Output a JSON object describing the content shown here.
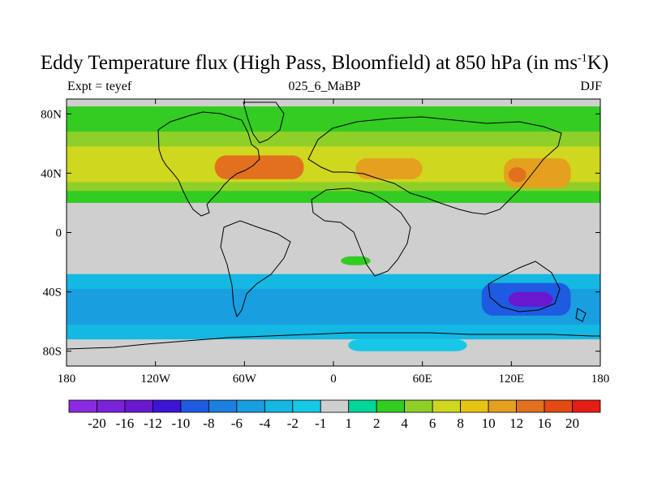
{
  "title": {
    "main": "Eddy Temperature flux (High Pass, Bloomfield) at 850 hPa (in ms",
    "exponent": "-1",
    "suffix": "K)"
  },
  "subtitle": {
    "left": "Expt = teyef",
    "center": "025_6_MaBP",
    "right": "DJF"
  },
  "chart_data": {
    "type": "heatmap",
    "title": "Eddy Temperature flux (High Pass, Bloomfield) at 850 hPa (in ms-1K)",
    "projection": "cylindrical equidistant",
    "xlim": [
      -180,
      180
    ],
    "ylim": [
      -90,
      90
    ],
    "x_ticks": [
      -180,
      -120,
      -60,
      0,
      60,
      120,
      180
    ],
    "x_tick_labels": [
      "180",
      "120W",
      "60W",
      "0",
      "60E",
      "120E",
      "180"
    ],
    "y_ticks": [
      80,
      40,
      0,
      -40,
      -80
    ],
    "y_tick_labels": [
      "80N",
      "40N",
      "0",
      "40S",
      "80S"
    ],
    "colorbar": {
      "colors": [
        "#8a2be2",
        "#7a22d8",
        "#6a18d0",
        "#3c14d6",
        "#1e5be0",
        "#1c7fe0",
        "#199ee0",
        "#14b8e2",
        "#16c8e6",
        "#cfcfcf",
        "#00d59a",
        "#33cc22",
        "#8fd028",
        "#cfd71e",
        "#e6c414",
        "#e4a01e",
        "#e2701e",
        "#e34a14",
        "#e41e14"
      ],
      "labels": [
        "-20",
        "-16",
        "-12",
        "-10",
        "-8",
        "-6",
        "-4",
        "-2",
        "-1",
        "1",
        "2",
        "4",
        "6",
        "8",
        "10",
        "12",
        "16",
        "20"
      ]
    },
    "field_regions": [
      {
        "name": "NH storm band",
        "lon": [
          -180,
          180
        ],
        "lat": [
          20,
          85
        ],
        "value": 2.5
      },
      {
        "name": "NH mid-latitude band",
        "lon": [
          -180,
          180
        ],
        "lat": [
          28,
          68
        ],
        "value": 5
      },
      {
        "name": "NH core band",
        "lon": [
          -180,
          180
        ],
        "lat": [
          34,
          58
        ],
        "value": 7
      },
      {
        "name": "North Atlantic maximum",
        "lon": [
          -80,
          -20
        ],
        "lat": [
          36,
          52
        ],
        "value": 12
      },
      {
        "name": "North Atlantic peak",
        "lon": [
          -65,
          -35
        ],
        "lat": [
          40,
          50
        ],
        "value": 14
      },
      {
        "name": "Asia maximum",
        "lon": [
          15,
          60
        ],
        "lat": [
          36,
          50
        ],
        "value": 10
      },
      {
        "name": "North Pacific maximum",
        "lon": [
          115,
          160
        ],
        "lat": [
          30,
          50
        ],
        "value": 11
      },
      {
        "name": "North Pacific peak",
        "lon": [
          118,
          130
        ],
        "lat": [
          34,
          44
        ],
        "value": 14
      },
      {
        "name": "Southern storm band",
        "lon": [
          -180,
          180
        ],
        "lat": [
          -72,
          -28
        ],
        "value": -3
      },
      {
        "name": "Southern core band",
        "lon": [
          -180,
          180
        ],
        "lat": [
          -62,
          -38
        ],
        "value": -6
      },
      {
        "name": "Australia minimum",
        "lon": [
          100,
          160
        ],
        "lat": [
          -56,
          -34
        ],
        "value": -9
      },
      {
        "name": "Australia core",
        "lon": [
          118,
          148
        ],
        "lat": [
          -50,
          -40
        ],
        "value": -14
      },
      {
        "name": "Antarctic coastal band",
        "lon": [
          10,
          90
        ],
        "lat": [
          -80,
          -72
        ],
        "value": -2
      },
      {
        "name": "South Atlantic patch",
        "lon": [
          5,
          25
        ],
        "lat": [
          -22,
          -16
        ],
        "value": 2
      }
    ]
  }
}
